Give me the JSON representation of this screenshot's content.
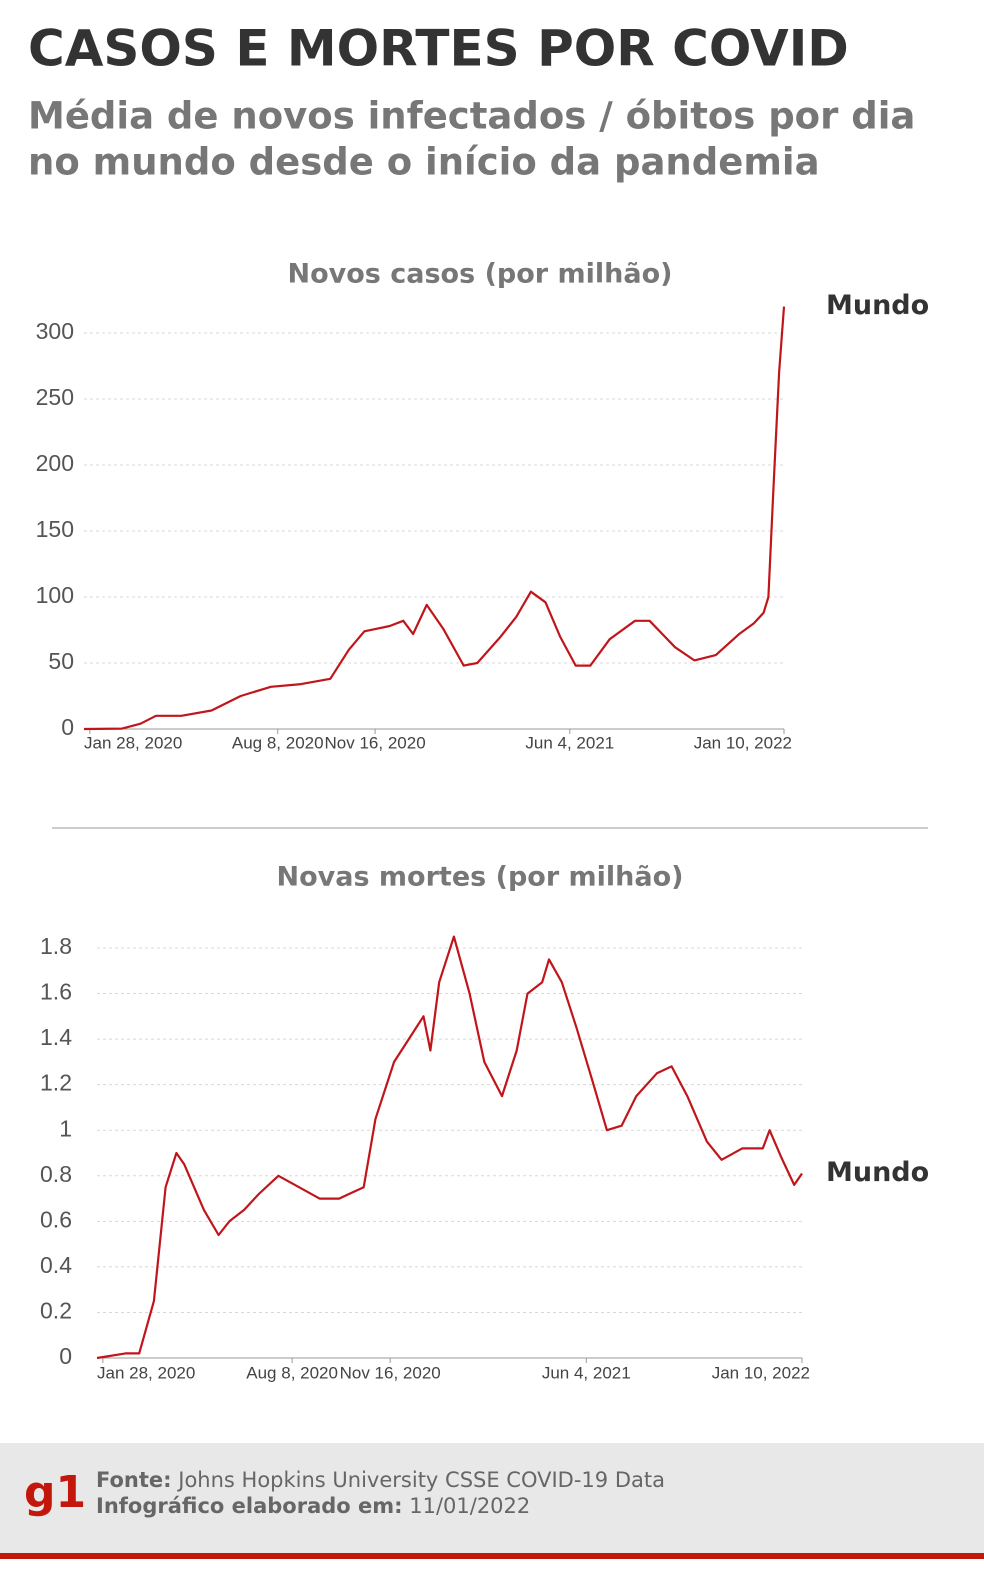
{
  "title": "CASOS E MORTES POR COVID",
  "subtitle": [
    "Média de novos infectados / óbitos por dia",
    "no mundo desde o início da pandemia"
  ],
  "chart_data": [
    {
      "type": "line",
      "title": "Novos casos (por milhão)",
      "x": [
        "2020-01-22",
        "2020-03-01",
        "2020-03-20",
        "2020-04-05",
        "2020-05-01",
        "2020-06-01",
        "2020-07-01",
        "2020-08-01",
        "2020-09-01",
        "2020-10-01",
        "2020-10-20",
        "2020-11-05",
        "2020-12-01",
        "2020-12-15",
        "2020-12-25",
        "2021-01-08",
        "2021-01-25",
        "2021-02-15",
        "2021-03-01",
        "2021-03-25",
        "2021-04-10",
        "2021-04-25",
        "2021-05-10",
        "2021-05-25",
        "2021-06-10",
        "2021-06-25",
        "2021-07-15",
        "2021-08-10",
        "2021-08-25",
        "2021-09-20",
        "2021-10-10",
        "2021-11-01",
        "2021-11-25",
        "2021-12-10",
        "2021-12-20",
        "2021-12-25",
        "2021-12-30",
        "2022-01-05",
        "2022-01-10"
      ],
      "xlim": [
        "2020-01-22",
        "2022-01-10"
      ],
      "xticks": [
        {
          "value": "2020-01-28",
          "label": "Jan 28, 2020"
        },
        {
          "value": "2020-08-08",
          "label": "Aug 8, 2020"
        },
        {
          "value": "2020-11-16",
          "label": "Nov 16, 2020"
        },
        {
          "value": "2021-06-04",
          "label": "Jun 4, 2021"
        },
        {
          "value": "2022-01-10",
          "label": "Jan 10, 2022"
        }
      ],
      "ylim": [
        0,
        320
      ],
      "yticks": [
        0,
        50,
        100,
        150,
        200,
        250,
        300
      ],
      "grid": true,
      "series": [
        {
          "name": "Mundo",
          "color": "#c0161b",
          "values": [
            0,
            0.3,
            4,
            10,
            10,
            14,
            25,
            32,
            34,
            38,
            60,
            74,
            78,
            82,
            72,
            94,
            76,
            48,
            50,
            70,
            85,
            104,
            96,
            70,
            48,
            48,
            68,
            82,
            82,
            62,
            52,
            56,
            72,
            80,
            88,
            100,
            180,
            270,
            320
          ]
        }
      ]
    },
    {
      "type": "line",
      "title": "Novas mortes (por milhão)",
      "x": [
        "2020-01-22",
        "2020-02-20",
        "2020-03-05",
        "2020-03-20",
        "2020-04-01",
        "2020-04-12",
        "2020-04-20",
        "2020-05-10",
        "2020-05-25",
        "2020-06-05",
        "2020-06-20",
        "2020-07-05",
        "2020-07-25",
        "2020-08-15",
        "2020-09-05",
        "2020-09-25",
        "2020-10-05",
        "2020-10-20",
        "2020-11-01",
        "2020-11-20",
        "2020-12-05",
        "2020-12-20",
        "2020-12-27",
        "2021-01-05",
        "2021-01-20",
        "2021-02-05",
        "2021-02-20",
        "2021-03-10",
        "2021-03-25",
        "2021-04-05",
        "2021-04-20",
        "2021-04-27",
        "2021-05-10",
        "2021-05-25",
        "2021-06-10",
        "2021-06-25",
        "2021-07-10",
        "2021-07-25",
        "2021-08-15",
        "2021-08-30",
        "2021-09-15",
        "2021-10-05",
        "2021-10-20",
        "2021-11-10",
        "2021-12-01",
        "2021-12-08",
        "2021-12-20",
        "2022-01-02",
        "2022-01-10"
      ],
      "xlim": [
        "2020-01-22",
        "2022-01-10"
      ],
      "xticks": [
        {
          "value": "2020-01-28",
          "label": "Jan 28, 2020"
        },
        {
          "value": "2020-08-08",
          "label": "Aug 8, 2020"
        },
        {
          "value": "2020-11-16",
          "label": "Nov 16, 2020"
        },
        {
          "value": "2021-06-04",
          "label": "Jun 4, 2021"
        },
        {
          "value": "2022-01-10",
          "label": "Jan 10, 2022"
        }
      ],
      "ylim": [
        0,
        1.8
      ],
      "yticks": [
        0,
        0.2,
        0.4,
        0.6,
        0.8,
        1,
        1.2,
        1.4,
        1.6,
        1.8
      ],
      "grid": true,
      "series": [
        {
          "name": "Mundo",
          "color": "#c0161b",
          "values": [
            0,
            0.02,
            0.02,
            0.25,
            0.75,
            0.9,
            0.85,
            0.65,
            0.54,
            0.6,
            0.65,
            0.72,
            0.8,
            0.75,
            0.7,
            0.7,
            0.72,
            0.75,
            1.05,
            1.3,
            1.4,
            1.5,
            1.35,
            1.65,
            1.85,
            1.6,
            1.3,
            1.15,
            1.35,
            1.6,
            1.65,
            1.75,
            1.65,
            1.45,
            1.22,
            1.0,
            1.02,
            1.15,
            1.25,
            1.28,
            1.15,
            0.95,
            0.87,
            0.92,
            0.92,
            1.0,
            0.88,
            0.76,
            0.81
          ]
        }
      ]
    }
  ],
  "footer": {
    "logo": "g1",
    "source_label": "Fonte:",
    "source": "Johns Hopkins University CSSE COVID-19 Data",
    "date_label": "Infográfico elaborado em:",
    "date": "11/01/2022"
  }
}
